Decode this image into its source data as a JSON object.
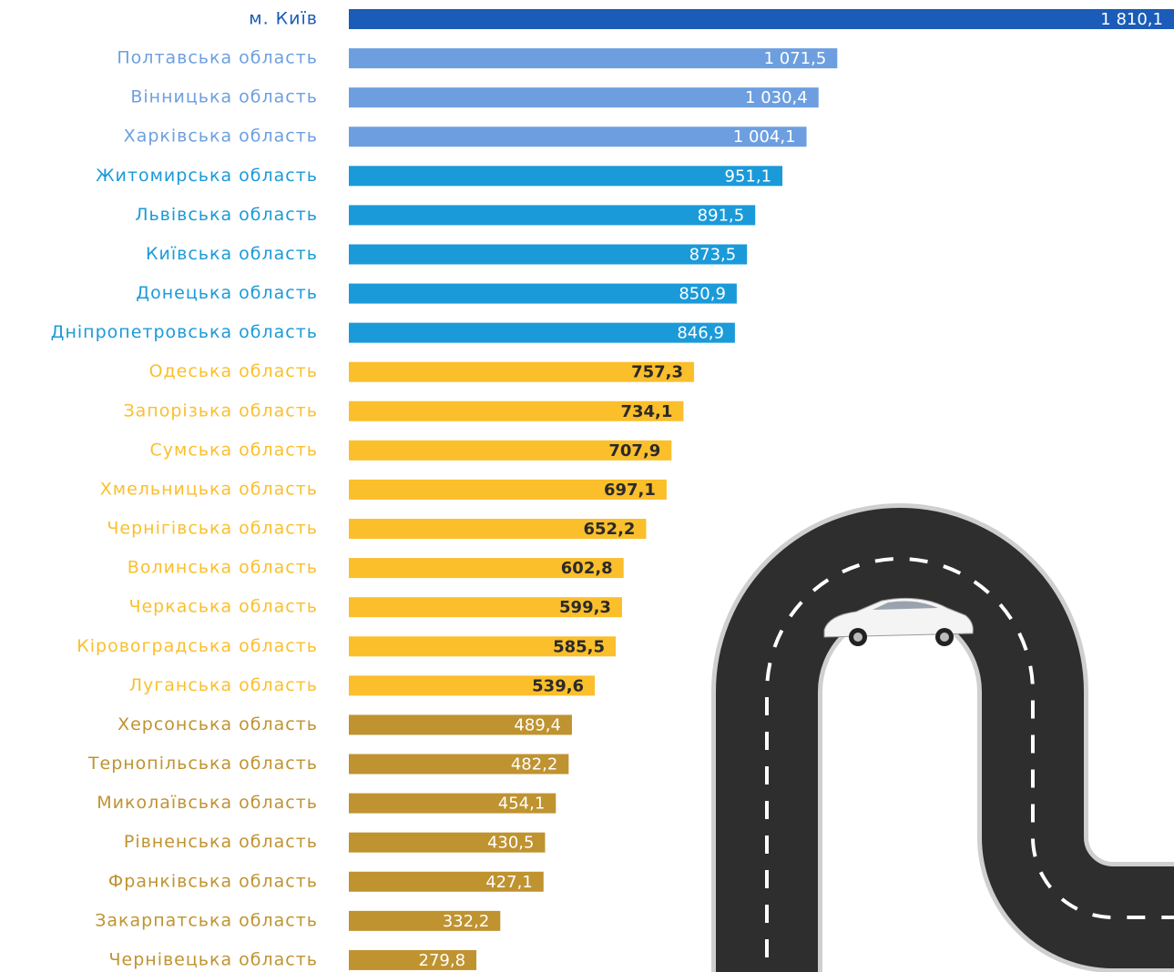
{
  "chart_data": {
    "type": "bar",
    "orientation": "horizontal",
    "categories": [
      "м. Київ",
      "Полтавська область",
      "Вінницька область",
      "Харківська область",
      "Житомирська область",
      "Львівська область",
      "Київська область",
      "Донецька область",
      "Дніпропетровська область",
      "Одеська область",
      "Запорізька область",
      "Сумська область",
      "Хмельницька область",
      "Чернігівська область",
      "Волинська область",
      "Черкаська область",
      "Кіровоградська область",
      "Луганська область",
      "Херсонська область",
      "Тернопільська область",
      "Миколаївська область",
      "Рівненська область",
      "Франківська область",
      "Закарпатська область",
      "Чернівецька область"
    ],
    "values": [
      1810.1,
      1071.5,
      1030.4,
      1004.1,
      951.1,
      891.5,
      873.5,
      850.9,
      846.9,
      757.3,
      734.1,
      707.9,
      697.1,
      652.2,
      602.8,
      599.3,
      585.5,
      539.6,
      489.4,
      482.2,
      454.1,
      430.5,
      427.1,
      332.2,
      279.8
    ],
    "value_labels": [
      "1 810,1",
      "1 071,5",
      "1 030,4",
      "1 004,1",
      "951,1",
      "891,5",
      "873,5",
      "850,9",
      "846,9",
      "757,3",
      "734,1",
      "707,9",
      "697,1",
      "652,2",
      "602,8",
      "599,3",
      "585,5",
      "539,6",
      "489,4",
      "482,2",
      "454,1",
      "430,5",
      "427,1",
      "332,2",
      "279,8"
    ],
    "colors": [
      "#1a5cb8",
      "#6d9fe0",
      "#6d9fe0",
      "#6d9fe0",
      "#1b9ad9",
      "#1b9ad9",
      "#1b9ad9",
      "#1b9ad9",
      "#1b9ad9",
      "#fbbf2c",
      "#fbbf2c",
      "#fbbf2c",
      "#fbbf2c",
      "#fbbf2c",
      "#fbbf2c",
      "#fbbf2c",
      "#fbbf2c",
      "#fbbf2c",
      "#bf9330",
      "#bf9330",
      "#bf9330",
      "#bf9330",
      "#bf9330",
      "#bf9330",
      "#bf9330"
    ]
  }
}
